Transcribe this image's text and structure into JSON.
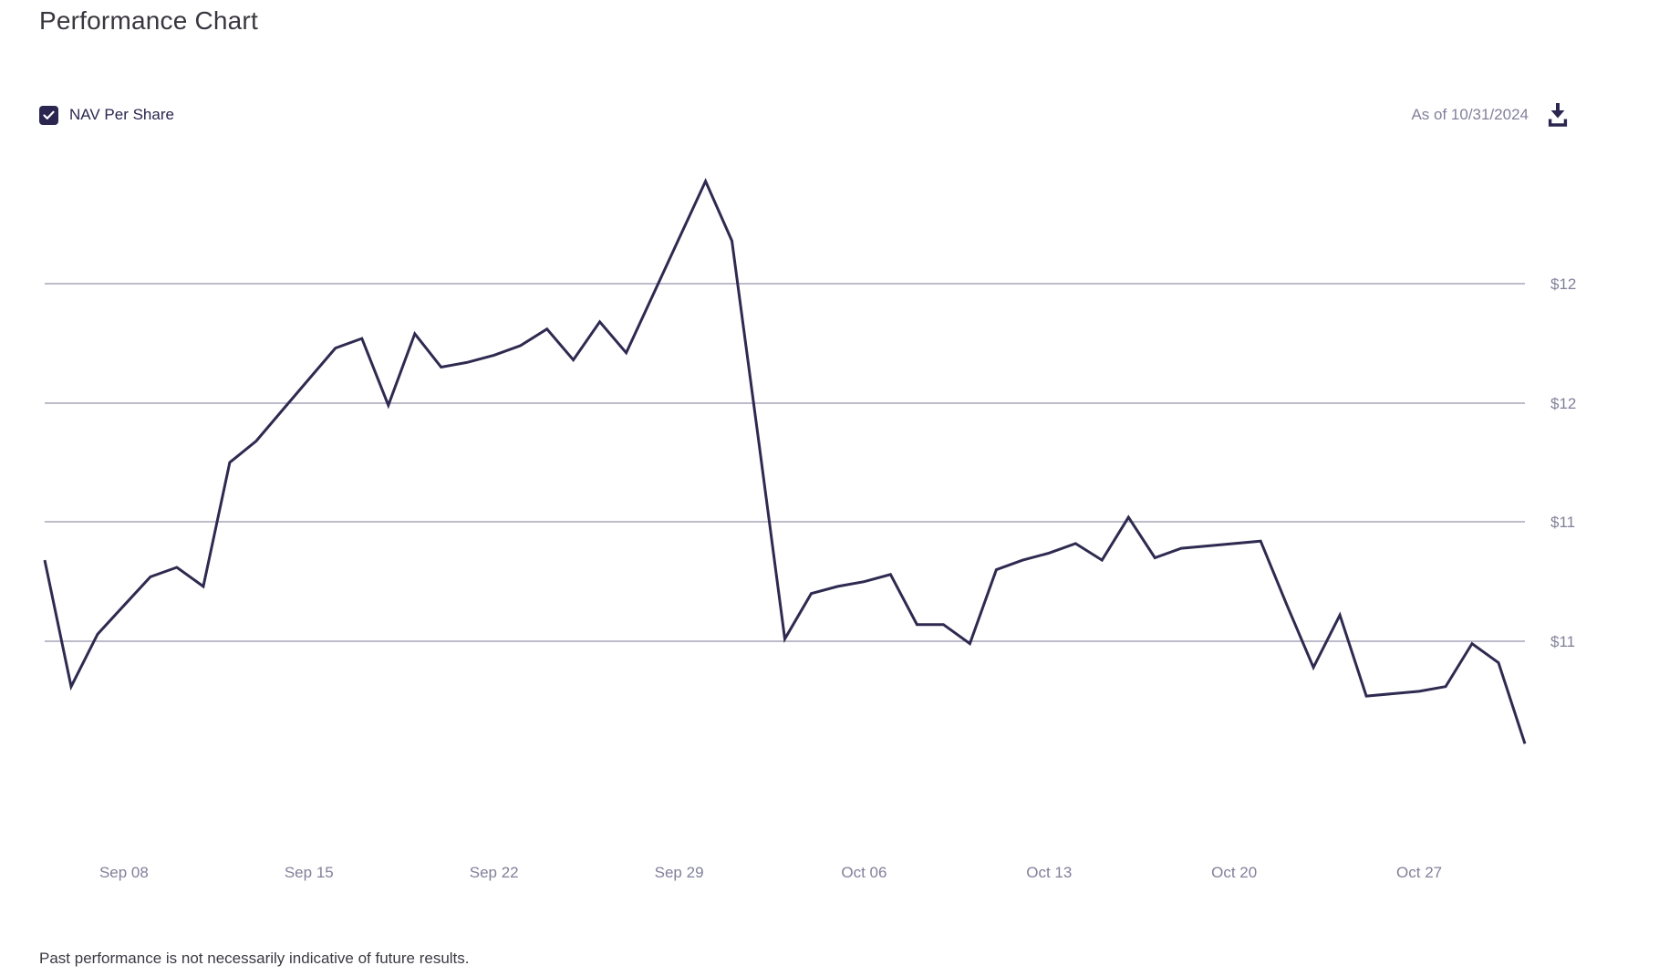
{
  "title": "Performance Chart",
  "legend": {
    "label": "NAV Per Share",
    "checked": true
  },
  "as_of": "As of 10/31/2024",
  "footer": {
    "disclaimer": "Past performance is not necessarily indicative of future results."
  },
  "icons": {
    "checkbox": "checkmark-icon",
    "download": "download-icon"
  },
  "colors": {
    "accent": "#2b2650",
    "line": "#2e2a50",
    "grid": "#9693aa",
    "axis_text": "#82809a",
    "title_text": "#39363f",
    "footer_text": "#3c3a43"
  },
  "chart_data": {
    "type": "line",
    "title": "Performance Chart",
    "series_name": "NAV Per Share",
    "as_of_date": "10/31/2024",
    "legend_position": "top-left",
    "grid": "horizontal-only",
    "ylim": [
      10.0,
      12.6
    ],
    "x": [
      "Sep 05",
      "Sep 06",
      "Sep 07",
      "Sep 08",
      "Sep 09",
      "Sep 10",
      "Sep 11",
      "Sep 12",
      "Sep 13",
      "Sep 14",
      "Sep 15",
      "Sep 16",
      "Sep 17",
      "Sep 18",
      "Sep 19",
      "Sep 20",
      "Sep 21",
      "Sep 22",
      "Sep 23",
      "Sep 24",
      "Sep 25",
      "Sep 26",
      "Sep 27",
      "Sep 28",
      "Sep 29",
      "Sep 30",
      "Oct 01",
      "Oct 02",
      "Oct 03",
      "Oct 04",
      "Oct 05",
      "Oct 06",
      "Oct 07",
      "Oct 08",
      "Oct 09",
      "Oct 10",
      "Oct 11",
      "Oct 12",
      "Oct 13",
      "Oct 14",
      "Oct 15",
      "Oct 16",
      "Oct 17",
      "Oct 18",
      "Oct 19",
      "Oct 20",
      "Oct 21",
      "Oct 22",
      "Oct 23",
      "Oct 24",
      "Oct 25",
      "Oct 26",
      "Oct 27",
      "Oct 28",
      "Oct 29",
      "Oct 30",
      "Oct 31"
    ],
    "values": [
      10.84,
      10.31,
      10.53,
      10.65,
      10.77,
      10.81,
      10.73,
      11.25,
      11.34,
      11.47,
      11.6,
      11.73,
      11.77,
      11.49,
      11.79,
      11.65,
      11.67,
      11.7,
      11.74,
      11.81,
      11.68,
      11.84,
      11.71,
      11.95,
      12.19,
      12.43,
      12.18,
      11.35,
      10.51,
      10.7,
      10.73,
      10.75,
      10.78,
      10.57,
      10.57,
      10.49,
      10.8,
      10.84,
      10.87,
      10.91,
      10.84,
      11.02,
      10.85,
      10.89,
      10.9,
      10.91,
      10.92,
      10.65,
      10.39,
      10.61,
      10.27,
      10.28,
      10.29,
      10.31,
      10.49,
      10.41,
      10.07
    ],
    "y_ticks": [
      {
        "label": "$12",
        "value": 12.0
      },
      {
        "label": "$12",
        "value": 11.5
      },
      {
        "label": "$11",
        "value": 11.0
      },
      {
        "label": "$11",
        "value": 10.5
      }
    ],
    "x_ticks": [
      "Sep 08",
      "Sep 15",
      "Sep 22",
      "Sep 29",
      "Oct 06",
      "Oct 13",
      "Oct 20",
      "Oct 27"
    ]
  }
}
